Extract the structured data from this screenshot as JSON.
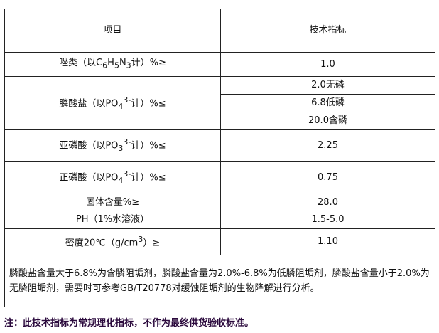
{
  "table": {
    "headers": [
      "项目",
      "技术指标"
    ],
    "rows": {
      "azole": {
        "label_pre": "唑类（以C",
        "s1": "6",
        "m1": "H",
        "s2": "5",
        "m2": "N",
        "s3": "3",
        "label_post": "计）%≥",
        "value": "1.0"
      },
      "phosphate": {
        "label_pre": "膦酸盐（以PO",
        "sub": "4",
        "sup": "3-",
        "label_post": "计）%≤",
        "values": [
          "2.0无磷",
          "6.8低磷",
          "20.0含磷"
        ]
      },
      "phosphorous": {
        "label_pre": "亚磷酸（以PO",
        "sub": "3",
        "sup": "3-",
        "label_post": "计）%≤",
        "value": "2.25"
      },
      "orthophosphate": {
        "label_pre": "正磷酸（以PO",
        "sub": "4",
        "sup": "3-",
        "label_post": "计）%≤",
        "value": "0.75"
      },
      "solids": {
        "label": "固体含量%≥",
        "value": "28.0"
      },
      "ph": {
        "label": "PH（1%水溶液）",
        "value": "1.5-5.0"
      },
      "density": {
        "label_pre": "密度20℃（g/cm",
        "sup": "3",
        "label_post": "）≥",
        "value": "1.10"
      }
    },
    "note": "膦酸盐含量大于6.8%为含膦阻垢剂，膦酸盐含量为2.0%-6.8%为低膦阻垢剂，膦酸盐含量小于2.0%为无膦阻垢剂，需要时可参考GB/T20778对缓蚀阻垢剂的生物降解进行分析。"
  },
  "footnote": "注：此技术指标为常规理化指标，不作为最终供货验收标准。",
  "colors": {
    "footnote": "#2b0a3d",
    "border": "#222222"
  }
}
